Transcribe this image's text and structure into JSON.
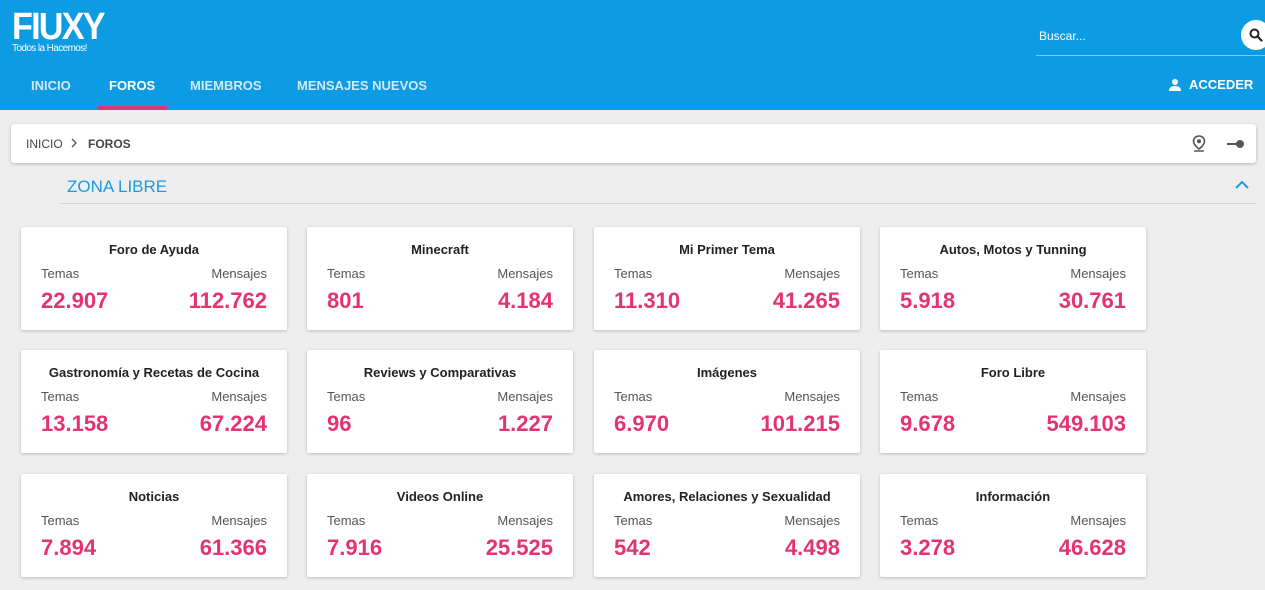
{
  "header": {
    "logo_text": "FIUXY",
    "logo_tagline": "Todos la Hacemos!",
    "search_placeholder": "Buscar...",
    "search_icon": "search-icon",
    "nav": [
      {
        "label": "INICIO",
        "active": false,
        "has_caret": true
      },
      {
        "label": "FOROS",
        "active": true,
        "has_caret": false
      },
      {
        "label": "MIEMBROS",
        "active": false,
        "has_caret": true
      },
      {
        "label": "MENSAJES NUEVOS",
        "active": false,
        "has_caret": true
      }
    ],
    "login_label": "ACCEDER",
    "login_icon": "user-icon"
  },
  "breadcrumb": {
    "items": [
      "INICIO",
      "FOROS"
    ],
    "separator_icon": "chevron-right-icon",
    "actions": [
      "location-pin-icon",
      "toggle-icon"
    ]
  },
  "section": {
    "title": "ZONA LIBRE",
    "collapse_icon": "chevron-up-icon"
  },
  "labels": {
    "topics": "Temas",
    "messages": "Mensajes"
  },
  "forums": [
    {
      "title": "Foro de Ayuda",
      "topics": "22.907",
      "messages": "112.762"
    },
    {
      "title": "Minecraft",
      "topics": "801",
      "messages": "4.184"
    },
    {
      "title": "Mi Primer Tema",
      "topics": "11.310",
      "messages": "41.265"
    },
    {
      "title": "Autos, Motos y Tunning",
      "topics": "5.918",
      "messages": "30.761"
    },
    {
      "title": "Gastronomía y Recetas de Cocina",
      "topics": "13.158",
      "messages": "67.224"
    },
    {
      "title": "Reviews y Comparativas",
      "topics": "96",
      "messages": "1.227"
    },
    {
      "title": "Imágenes",
      "topics": "6.970",
      "messages": "101.215"
    },
    {
      "title": "Foro Libre",
      "topics": "9.678",
      "messages": "549.103"
    },
    {
      "title": "Noticias",
      "topics": "7.894",
      "messages": "61.366"
    },
    {
      "title": "Videos Online",
      "topics": "7.916",
      "messages": "25.525"
    },
    {
      "title": "Amores, Relaciones y Sexualidad",
      "topics": "542",
      "messages": "4.498"
    },
    {
      "title": "Información",
      "topics": "3.278",
      "messages": "46.628"
    }
  ],
  "colors": {
    "header_bg": "#0d9be4",
    "accent_pink": "#e5336d",
    "section_blue": "#1c9be0",
    "page_bg": "#eeeeee"
  }
}
